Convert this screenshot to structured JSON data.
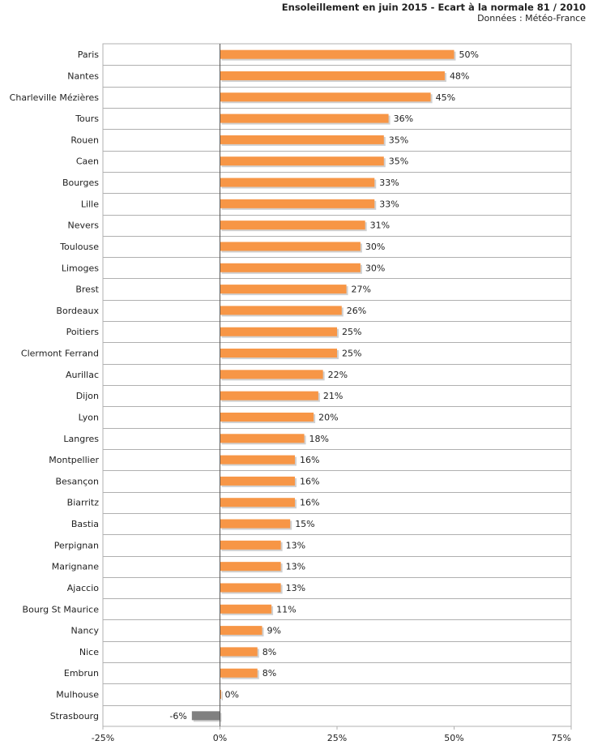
{
  "chart_data": {
    "type": "bar",
    "orientation": "horizontal",
    "title": "Ensoleillement en juin 2015 - Ecart à la normale 81 / 2010",
    "subtitle": "Données : Météo-France",
    "categories": [
      "Paris",
      "Nantes",
      "Charleville Mézières",
      "Tours",
      "Rouen",
      "Caen",
      "Bourges",
      "Lille",
      "Nevers",
      "Toulouse",
      "Limoges",
      "Brest",
      "Bordeaux",
      "Poitiers",
      "Clermont Ferrand",
      "Aurillac",
      "Dijon",
      "Lyon",
      "Langres",
      "Montpellier",
      "Besançon",
      "Biarritz",
      "Bastia",
      "Perpignan",
      "Marignane",
      "Ajaccio",
      "Bourg St Maurice",
      "Nancy",
      "Nice",
      "Embrun",
      "Mulhouse",
      "Strasbourg"
    ],
    "values": [
      50,
      48,
      45,
      36,
      35,
      35,
      33,
      33,
      31,
      30,
      30,
      27,
      26,
      25,
      25,
      22,
      21,
      20,
      18,
      16,
      16,
      16,
      15,
      13,
      13,
      13,
      11,
      9,
      8,
      8,
      0,
      -6
    ],
    "value_labels": [
      "50%",
      "48%",
      "45%",
      "36%",
      "35%",
      "35%",
      "33%",
      "33%",
      "31%",
      "30%",
      "30%",
      "27%",
      "26%",
      "25%",
      "25%",
      "22%",
      "21%",
      "20%",
      "18%",
      "16%",
      "16%",
      "16%",
      "15%",
      "13%",
      "13%",
      "13%",
      "11%",
      "9%",
      "8%",
      "8%",
      "0%",
      "-6%"
    ],
    "xlim": [
      -25,
      75
    ],
    "xticks": [
      -25,
      0,
      25,
      50,
      75
    ],
    "xtick_labels": [
      "-25%",
      "0%",
      "25%",
      "50%",
      "75%"
    ],
    "grid": "horizontal-row-separators",
    "colors": {
      "positive": "#f79646",
      "negative": "#808080",
      "grid": "#b0b0b0"
    }
  }
}
